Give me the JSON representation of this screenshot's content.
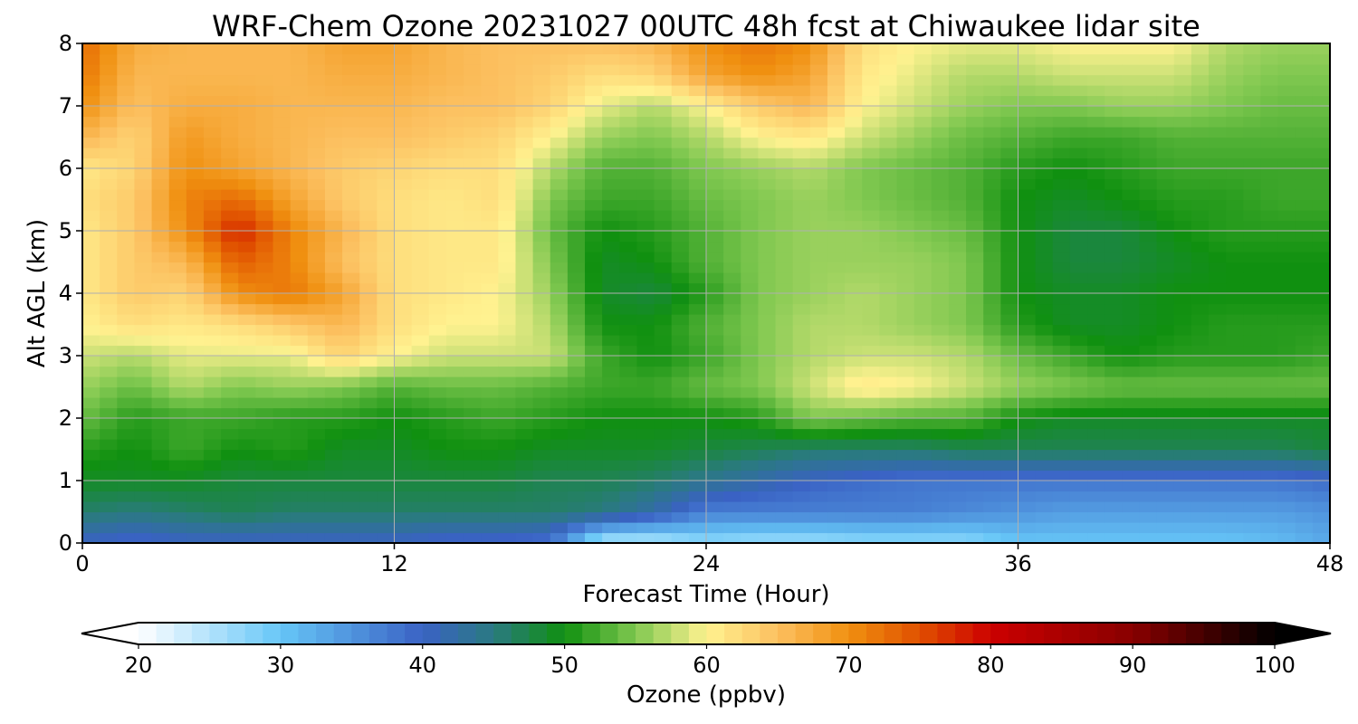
{
  "chart_data": {
    "type": "heatmap",
    "title": "WRF-Chem Ozone  20231027 00UTC 48h fcst at Chiwaukee lidar site",
    "xlabel": "Forecast Time (Hour)",
    "ylabel": "Alt AGL (km)",
    "xlim": [
      0,
      48
    ],
    "ylim": [
      0,
      8
    ],
    "xticks": [
      0,
      12,
      24,
      36,
      48
    ],
    "yticks": [
      0,
      1,
      2,
      3,
      4,
      5,
      6,
      7,
      8
    ],
    "grid": true,
    "colorbar": {
      "label": "Ozone  (ppbv)",
      "range": [
        20,
        100
      ],
      "ticks": [
        20,
        30,
        40,
        50,
        60,
        70,
        80,
        90,
        100
      ],
      "extend": "both",
      "colormap_stops": [
        {
          "value": 20,
          "color": "#ffffff"
        },
        {
          "value": 30,
          "color": "#66c6f7"
        },
        {
          "value": 40,
          "color": "#3a62c4"
        },
        {
          "value": 45,
          "color": "#2a7a80"
        },
        {
          "value": 50,
          "color": "#109010"
        },
        {
          "value": 55,
          "color": "#80c850"
        },
        {
          "value": 60,
          "color": "#fff290"
        },
        {
          "value": 65,
          "color": "#fcc060"
        },
        {
          "value": 70,
          "color": "#f09010"
        },
        {
          "value": 75,
          "color": "#e05000"
        },
        {
          "value": 80,
          "color": "#cc0000"
        },
        {
          "value": 90,
          "color": "#880000"
        },
        {
          "value": 100,
          "color": "#000000"
        }
      ]
    },
    "x": [
      0,
      2,
      4,
      6,
      8,
      10,
      12,
      14,
      16,
      18,
      20,
      22,
      24,
      26,
      28,
      30,
      32,
      34,
      36,
      38,
      40,
      42,
      44,
      46,
      48
    ],
    "y": [
      0,
      0.5,
      1,
      1.5,
      2,
      2.5,
      3,
      3.5,
      4,
      4.5,
      5,
      5.5,
      6,
      6.5,
      7,
      7.5,
      8
    ],
    "z": [
      [
        40,
        39,
        40,
        40,
        40,
        40,
        40,
        39,
        39,
        38,
        24,
        24,
        27,
        26,
        26,
        27,
        27,
        27,
        30,
        30,
        30,
        30,
        30,
        31,
        33
      ],
      [
        46,
        45,
        46,
        47,
        46,
        46,
        46,
        46,
        46,
        46,
        45,
        42,
        37,
        37,
        37,
        37,
        37,
        36,
        35,
        34,
        34,
        34,
        34,
        34,
        35
      ],
      [
        49,
        49,
        49,
        48,
        48,
        48,
        48,
        48,
        48,
        47,
        47,
        46,
        44,
        42,
        40,
        39,
        38,
        38,
        38,
        38,
        38,
        38,
        38,
        38,
        39
      ],
      [
        51,
        50,
        52,
        50,
        51,
        49,
        49,
        50,
        50,
        49,
        49,
        49,
        48,
        47,
        46,
        46,
        46,
        47,
        47,
        47,
        47,
        47,
        47,
        47,
        48
      ],
      [
        54,
        51,
        52,
        52,
        51,
        51,
        50,
        51,
        52,
        51,
        50,
        50,
        50,
        51,
        55,
        54,
        53,
        53,
        50,
        49,
        49,
        49,
        49,
        49,
        49
      ],
      [
        56,
        54,
        57,
        55,
        56,
        55,
        53,
        54,
        54,
        53,
        52,
        52,
        54,
        55,
        58,
        61,
        60,
        58,
        56,
        55,
        54,
        54,
        54,
        54,
        54
      ],
      [
        58,
        57,
        59,
        59,
        59,
        63,
        60,
        58,
        58,
        58,
        52,
        50,
        52,
        55,
        57,
        58,
        58,
        57,
        54,
        52,
        50,
        51,
        51,
        51,
        52
      ],
      [
        60,
        62,
        61,
        62,
        64,
        66,
        62,
        60,
        60,
        57,
        50,
        50,
        53,
        55,
        57,
        57,
        56,
        55,
        51,
        49,
        49,
        50,
        51,
        51,
        51
      ],
      [
        61,
        64,
        63,
        70,
        72,
        68,
        62,
        61,
        60,
        56,
        49,
        48,
        51,
        55,
        56,
        57,
        56,
        55,
        50,
        49,
        49,
        50,
        50,
        50,
        50
      ],
      [
        61,
        64,
        66,
        74,
        71,
        65,
        62,
        61,
        61,
        55,
        49,
        50,
        53,
        55,
        56,
        56,
        56,
        55,
        50,
        48,
        48,
        49,
        50,
        50,
        50
      ],
      [
        61,
        64,
        70,
        78,
        71,
        66,
        62,
        61,
        61,
        54,
        50,
        51,
        53,
        55,
        56,
        56,
        55,
        54,
        50,
        48,
        48,
        50,
        51,
        51,
        51
      ],
      [
        62,
        64,
        71,
        73,
        68,
        64,
        62,
        61,
        62,
        55,
        52,
        52,
        54,
        55,
        56,
        55,
        54,
        53,
        50,
        49,
        50,
        51,
        51,
        52,
        52
      ],
      [
        61,
        63,
        70,
        68,
        66,
        64,
        63,
        62,
        62,
        57,
        53,
        53,
        55,
        56,
        57,
        55,
        54,
        53,
        51,
        50,
        51,
        52,
        52,
        52,
        52
      ],
      [
        66,
        63,
        69,
        67,
        66,
        65,
        65,
        64,
        63,
        60,
        56,
        55,
        57,
        60,
        61,
        58,
        56,
        54,
        53,
        52,
        52,
        53,
        53,
        53,
        53
      ],
      [
        70,
        65,
        67,
        67,
        66,
        66,
        66,
        65,
        65,
        63,
        59,
        57,
        60,
        64,
        66,
        60,
        58,
        56,
        55,
        55,
        56,
        56,
        55,
        54,
        54
      ],
      [
        72,
        66,
        66,
        66,
        66,
        67,
        67,
        66,
        65,
        64,
        62,
        63,
        68,
        70,
        68,
        61,
        59,
        57,
        57,
        58,
        58,
        58,
        56,
        55,
        55
      ],
      [
        73,
        67,
        66,
        66,
        66,
        68,
        68,
        66,
        65,
        65,
        65,
        66,
        70,
        72,
        70,
        62,
        60,
        59,
        59,
        60,
        60,
        60,
        57,
        56,
        56
      ]
    ]
  }
}
